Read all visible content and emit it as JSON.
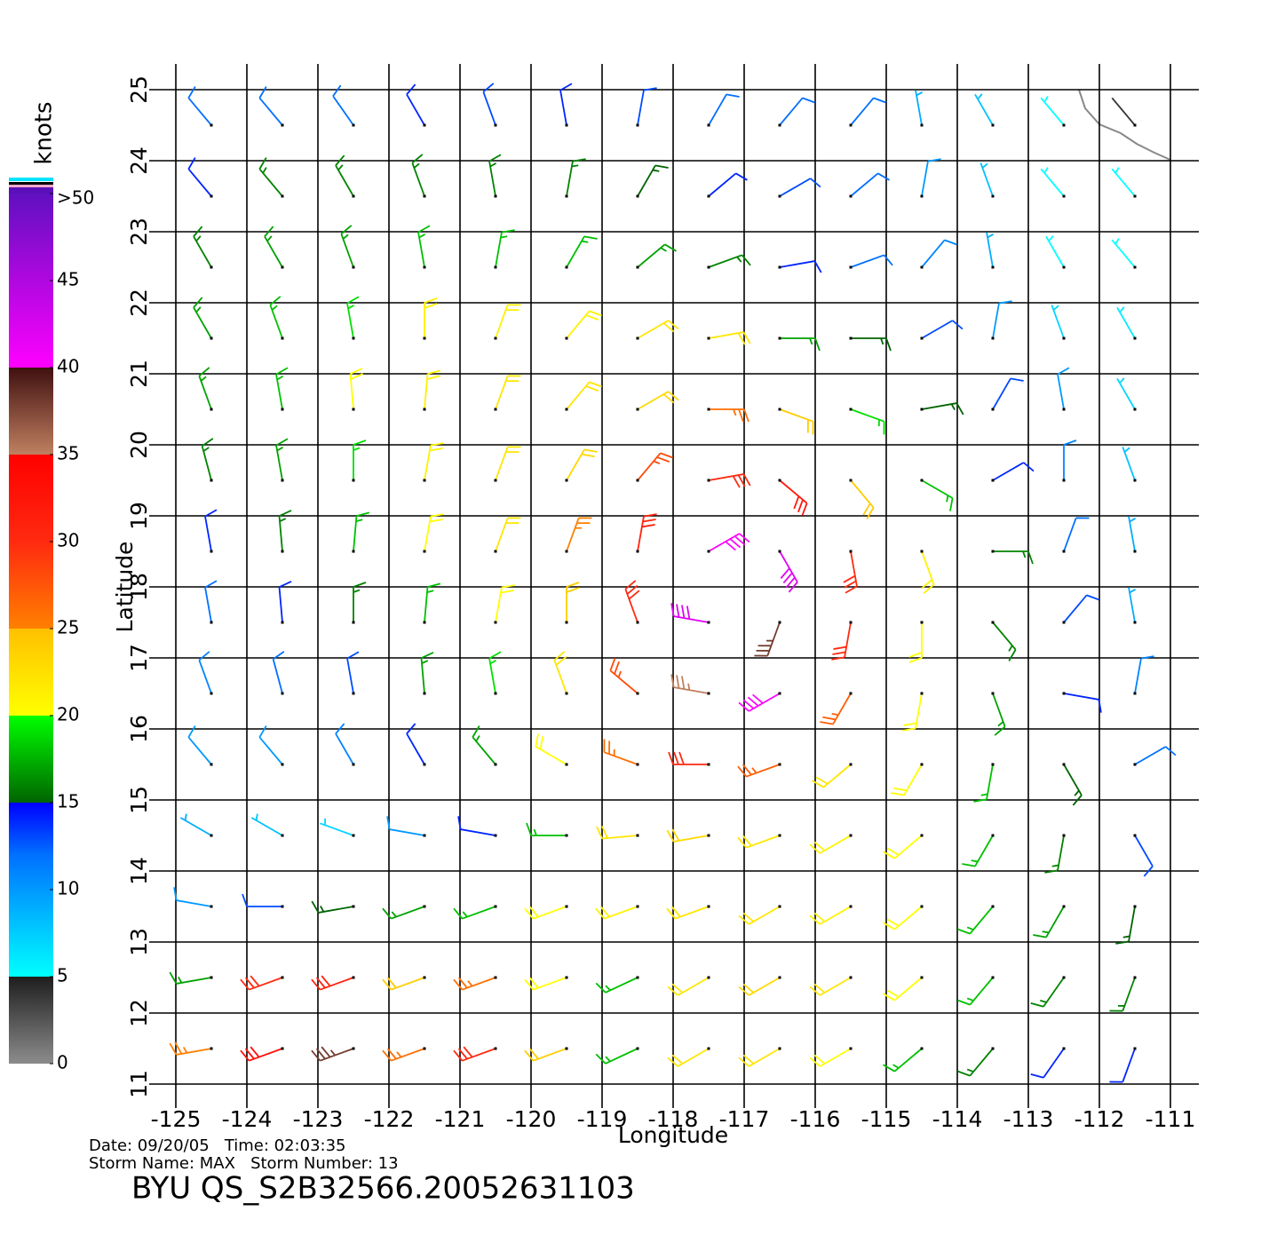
{
  "chart_data": {
    "type": "wind_barb",
    "xlabel": "Longitude",
    "ylabel": "Latitude",
    "xlim": [
      -125,
      -111
    ],
    "ylim": [
      11,
      25
    ],
    "xticks": [
      -125,
      -124,
      -123,
      -122,
      -121,
      -120,
      -119,
      -118,
      -117,
      -116,
      -115,
      -114,
      -113,
      -112,
      -111
    ],
    "yticks": [
      11,
      12,
      13,
      14,
      15,
      16,
      17,
      18,
      19,
      20,
      21,
      22,
      23,
      24,
      25
    ],
    "grid": true,
    "annotations": [
      "Date: 09/20/05   Time: 02:03:35",
      "Storm Name: MAX   Storm Number: 13",
      "BYU QS_S2B32566.20052631103"
    ],
    "colorbar": {
      "label": "knots",
      "lim": [
        0,
        50
      ],
      "ticks": [
        {
          "value": 50,
          "label": ">50"
        },
        45,
        40,
        35,
        30,
        25,
        20,
        15,
        10,
        5,
        0
      ],
      "stops": [
        [
          0,
          "#8c8c8c"
        ],
        [
          5,
          "#1e1e1e"
        ],
        [
          5,
          "#00ffff"
        ],
        [
          12,
          "#0070ff"
        ],
        [
          15,
          "#0000ff"
        ],
        [
          15,
          "#006400"
        ],
        [
          20,
          "#00ff00"
        ],
        [
          20,
          "#ffff00"
        ],
        [
          25,
          "#ffc000"
        ],
        [
          25,
          "#ff8000"
        ],
        [
          30,
          "#ff2a10"
        ],
        [
          30,
          "#ff2a10"
        ],
        [
          35,
          "#ff0000"
        ],
        [
          35,
          "#c08060"
        ],
        [
          40,
          "#401010"
        ],
        [
          40,
          "#ff00ff"
        ],
        [
          50,
          "#6010c0"
        ]
      ]
    },
    "lats": [
      24.5,
      23.5,
      22.5,
      21.5,
      20.5,
      19.5,
      18.5,
      17.5,
      16.5,
      15.5,
      14.5,
      13.5,
      12.5,
      11.5
    ],
    "lons": [
      -124.5,
      -123.5,
      -122.5,
      -121.5,
      -120.5,
      -119.5,
      -118.5,
      -117.5,
      -116.5,
      -115.5,
      -114.5,
      -113.5,
      -112.5,
      -111.5
    ],
    "speed": [
      [
        12,
        12,
        12,
        14,
        13,
        14,
        13,
        12,
        12,
        12,
        9,
        8,
        5,
        4
      ],
      [
        14,
        16,
        16,
        16,
        16,
        16,
        15,
        14,
        13,
        12,
        10,
        8,
        5,
        5
      ],
      [
        16,
        17,
        17,
        18,
        18,
        18,
        17,
        16,
        14,
        12,
        11,
        9,
        5,
        5
      ],
      [
        17,
        18,
        19,
        21,
        21,
        21,
        22,
        22,
        17,
        15,
        13,
        10,
        7,
        6
      ],
      [
        17,
        18,
        20,
        21,
        22,
        22,
        23,
        26,
        24,
        19,
        15,
        13,
        10,
        7
      ],
      [
        16,
        17,
        19,
        21,
        22,
        23,
        28,
        30,
        32,
        24,
        18,
        14,
        11,
        8
      ],
      [
        14,
        16,
        18,
        20,
        22,
        25,
        31,
        40,
        42,
        30,
        21,
        16,
        12,
        9
      ],
      [
        12,
        14,
        16,
        18,
        20,
        24,
        30,
        42,
        38,
        30,
        20,
        16,
        13,
        9
      ],
      [
        11,
        12,
        13,
        17,
        19,
        22,
        28,
        35,
        40,
        27,
        20,
        17,
        14,
        11
      ],
      [
        10,
        10,
        11,
        14,
        17,
        20,
        26,
        30,
        27,
        22,
        20,
        18,
        15,
        12
      ],
      [
        9,
        8,
        7,
        10,
        14,
        18,
        22,
        23,
        22,
        21,
        20,
        18,
        16,
        13
      ],
      [
        10,
        13,
        15,
        17,
        18,
        20,
        21,
        22,
        22,
        21,
        20,
        18,
        17,
        15
      ],
      [
        17,
        30,
        31,
        24,
        26,
        20,
        18,
        22,
        23,
        22,
        20,
        18,
        16,
        16
      ],
      [
        25,
        33,
        38,
        26,
        30,
        24,
        18,
        22,
        22,
        20,
        18,
        16,
        14,
        14
      ]
    ],
    "direction": [
      [
        320,
        320,
        325,
        330,
        340,
        350,
        10,
        30,
        40,
        40,
        350,
        330,
        320,
        320
      ],
      [
        320,
        320,
        330,
        340,
        350,
        10,
        30,
        50,
        60,
        50,
        10,
        340,
        320,
        320
      ],
      [
        330,
        330,
        340,
        350,
        10,
        30,
        50,
        70,
        80,
        70,
        40,
        350,
        330,
        320
      ],
      [
        330,
        340,
        350,
        0,
        20,
        40,
        60,
        80,
        90,
        90,
        60,
        10,
        340,
        330
      ],
      [
        340,
        350,
        355,
        5,
        20,
        40,
        60,
        90,
        110,
        110,
        80,
        30,
        350,
        330
      ],
      [
        345,
        350,
        0,
        10,
        20,
        30,
        40,
        80,
        130,
        140,
        120,
        60,
        360,
        340
      ],
      [
        350,
        355,
        5,
        10,
        20,
        20,
        10,
        60,
        150,
        170,
        160,
        90,
        20,
        350
      ],
      [
        350,
        355,
        0,
        5,
        10,
        0,
        340,
        280,
        200,
        190,
        180,
        140,
        40,
        350
      ],
      [
        340,
        345,
        350,
        355,
        350,
        340,
        310,
        280,
        240,
        210,
        190,
        160,
        100,
        10
      ],
      [
        320,
        320,
        330,
        330,
        320,
        300,
        290,
        270,
        250,
        230,
        210,
        190,
        150,
        60
      ],
      [
        300,
        300,
        290,
        280,
        280,
        270,
        265,
        260,
        250,
        240,
        230,
        210,
        190,
        150
      ],
      [
        280,
        270,
        260,
        250,
        250,
        250,
        250,
        250,
        240,
        240,
        230,
        220,
        210,
        190
      ],
      [
        260,
        250,
        250,
        250,
        250,
        250,
        245,
        240,
        240,
        240,
        230,
        220,
        215,
        200
      ],
      [
        260,
        250,
        250,
        250,
        250,
        250,
        245,
        240,
        240,
        240,
        230,
        220,
        215,
        200
      ]
    ]
  }
}
